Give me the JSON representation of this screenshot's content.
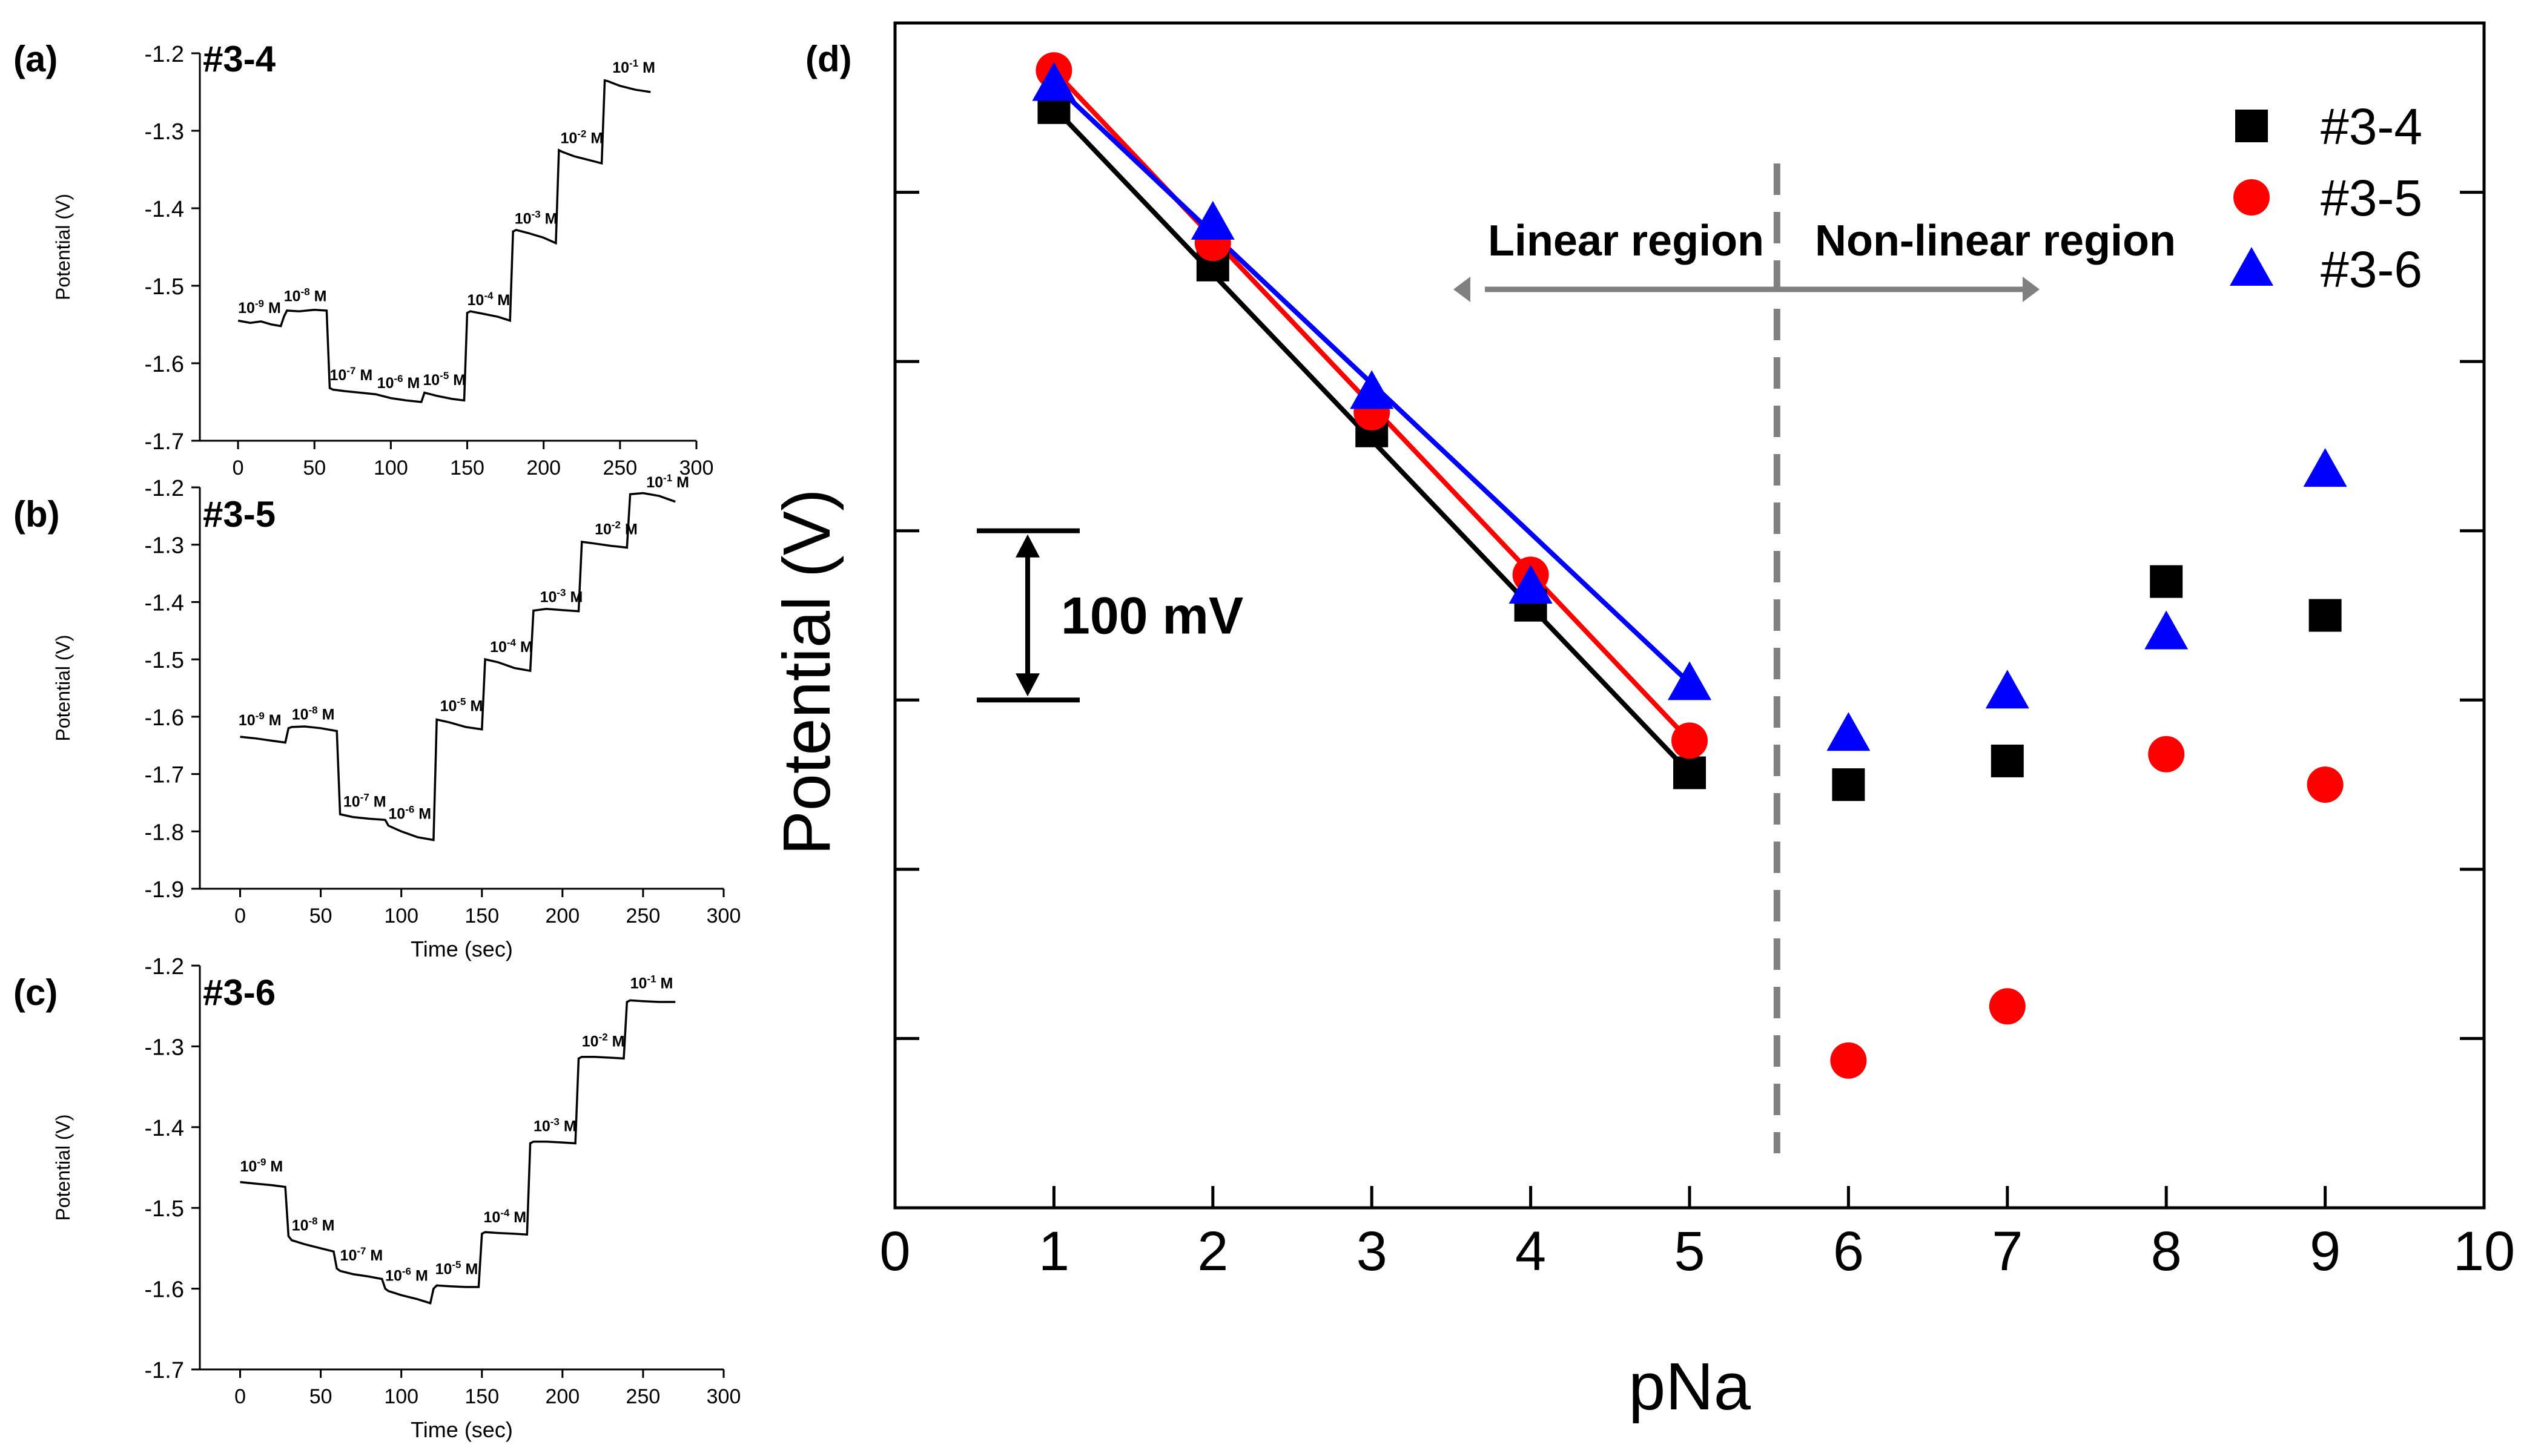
{
  "colors": {
    "black": "#000000",
    "red": "#ff0000",
    "blue": "#0000ff",
    "gray": "#808080"
  },
  "chart_data": [
    {
      "panel": "(a)",
      "title": "#3-4",
      "type": "line",
      "ylabel": "Potential (V)",
      "xlabel": "",
      "xlim": [
        -25,
        300
      ],
      "ylim": [
        -1.7,
        -1.2
      ],
      "xticks": [
        "0",
        "50",
        "100",
        "150",
        "200",
        "250",
        "300"
      ],
      "yticks": [
        "-1.2",
        "-1.3",
        "-1.4",
        "-1.5",
        "-1.6",
        "-1.7"
      ],
      "series": [
        {
          "x": [
            0,
            8,
            15,
            22,
            28,
            30,
            32,
            40,
            50,
            58,
            60,
            62,
            70,
            80,
            90,
            100,
            110,
            120,
            122,
            130,
            140,
            148,
            150,
            152,
            160,
            170,
            178,
            180,
            182,
            190,
            200,
            208,
            210,
            212,
            220,
            230,
            238,
            240,
            242,
            250,
            260,
            270
          ],
          "y": [
            -1.545,
            -1.548,
            -1.546,
            -1.55,
            -1.552,
            -1.54,
            -1.532,
            -1.533,
            -1.531,
            -1.532,
            -1.632,
            -1.634,
            -1.636,
            -1.638,
            -1.64,
            -1.645,
            -1.648,
            -1.65,
            -1.638,
            -1.642,
            -1.646,
            -1.648,
            -1.535,
            -1.533,
            -1.536,
            -1.54,
            -1.545,
            -1.43,
            -1.428,
            -1.432,
            -1.438,
            -1.445,
            -1.325,
            -1.327,
            -1.333,
            -1.338,
            -1.342,
            -1.235,
            -1.236,
            -1.242,
            -1.247,
            -1.25
          ]
        }
      ],
      "annotations": [
        {
          "base": "10",
          "exp": "-9",
          "unit": " M",
          "x": 0,
          "y": -1.535
        },
        {
          "base": "10",
          "exp": "-8",
          "unit": " M",
          "x": 30,
          "y": -1.52
        },
        {
          "base": "10",
          "exp": "-7",
          "unit": " M",
          "x": 60,
          "y": -1.622
        },
        {
          "base": "10",
          "exp": "-6",
          "unit": " M",
          "x": 91,
          "y": -1.632
        },
        {
          "base": "10",
          "exp": "-5",
          "unit": " M",
          "x": 121,
          "y": -1.628
        },
        {
          "base": "10",
          "exp": "-4",
          "unit": " M",
          "x": 150,
          "y": -1.525
        },
        {
          "base": "10",
          "exp": "-3",
          "unit": " M",
          "x": 181,
          "y": -1.42
        },
        {
          "base": "10",
          "exp": "-2",
          "unit": " M",
          "x": 211,
          "y": -1.316
        },
        {
          "base": "10",
          "exp": "-1",
          "unit": " M",
          "x": 245,
          "y": -1.225
        }
      ]
    },
    {
      "panel": "(b)",
      "title": "#3-5",
      "type": "line",
      "ylabel": "Potential (V)",
      "xlabel": "Time (sec)",
      "xlim": [
        -25,
        300
      ],
      "ylim": [
        -1.9,
        -1.2
      ],
      "xticks": [
        "0",
        "50",
        "100",
        "150",
        "200",
        "250",
        "300"
      ],
      "yticks": [
        "-1.2",
        "-1.3",
        "-1.4",
        "-1.5",
        "-1.6",
        "-1.7",
        "-1.8",
        "-1.9"
      ],
      "series": [
        {
          "x": [
            0,
            10,
            20,
            28,
            30,
            32,
            40,
            50,
            60,
            62,
            70,
            80,
            90,
            92,
            100,
            110,
            120,
            122,
            130,
            140,
            150,
            152,
            160,
            170,
            180,
            182,
            190,
            200,
            210,
            212,
            220,
            230,
            240,
            242,
            250,
            260,
            270
          ],
          "y": [
            -1.635,
            -1.638,
            -1.642,
            -1.645,
            -1.62,
            -1.618,
            -1.617,
            -1.62,
            -1.625,
            -1.77,
            -1.775,
            -1.778,
            -1.78,
            -1.79,
            -1.8,
            -1.81,
            -1.815,
            -1.605,
            -1.61,
            -1.618,
            -1.622,
            -1.5,
            -1.505,
            -1.515,
            -1.52,
            -1.415,
            -1.412,
            -1.414,
            -1.416,
            -1.295,
            -1.298,
            -1.302,
            -1.305,
            -1.212,
            -1.21,
            -1.215,
            -1.225
          ]
        }
      ],
      "annotations": [
        {
          "base": "10",
          "exp": "-9",
          "unit": " M",
          "x": -1,
          "y": -1.615
        },
        {
          "base": "10",
          "exp": "-8",
          "unit": " M",
          "x": 32,
          "y": -1.605
        },
        {
          "base": "10",
          "exp": "-7",
          "unit": " M",
          "x": 64,
          "y": -1.757
        },
        {
          "base": "10",
          "exp": "-6",
          "unit": " M",
          "x": 92,
          "y": -1.778
        },
        {
          "base": "10",
          "exp": "-5",
          "unit": " M",
          "x": 124,
          "y": -1.59
        },
        {
          "base": "10",
          "exp": "-4",
          "unit": " M",
          "x": 155,
          "y": -1.487
        },
        {
          "base": "10",
          "exp": "-3",
          "unit": " M",
          "x": 186,
          "y": -1.4
        },
        {
          "base": "10",
          "exp": "-2",
          "unit": " M",
          "x": 220,
          "y": -1.282
        },
        {
          "base": "10",
          "exp": "-1",
          "unit": " M",
          "x": 252,
          "y": -1.2
        }
      ]
    },
    {
      "panel": "(c)",
      "title": "#3-6",
      "type": "line",
      "ylabel": "Potential (V)",
      "xlabel": "Time (sec)",
      "xlim": [
        -25,
        300
      ],
      "ylim": [
        -1.7,
        -1.2
      ],
      "xticks": [
        "0",
        "50",
        "100",
        "150",
        "200",
        "250",
        "300"
      ],
      "yticks": [
        "-1.2",
        "-1.3",
        "-1.4",
        "-1.5",
        "-1.6",
        "-1.7"
      ],
      "series": [
        {
          "x": [
            0,
            10,
            20,
            28,
            30,
            32,
            40,
            50,
            58,
            60,
            62,
            70,
            80,
            88,
            90,
            92,
            100,
            110,
            118,
            120,
            122,
            130,
            140,
            148,
            150,
            152,
            160,
            170,
            178,
            180,
            182,
            190,
            200,
            208,
            210,
            212,
            220,
            230,
            238,
            240,
            242,
            250,
            260,
            270
          ],
          "y": [
            -1.468,
            -1.47,
            -1.472,
            -1.474,
            -1.535,
            -1.54,
            -1.545,
            -1.55,
            -1.554,
            -1.575,
            -1.578,
            -1.582,
            -1.585,
            -1.588,
            -1.6,
            -1.603,
            -1.608,
            -1.613,
            -1.618,
            -1.6,
            -1.596,
            -1.597,
            -1.598,
            -1.598,
            -1.532,
            -1.53,
            -1.531,
            -1.532,
            -1.533,
            -1.42,
            -1.418,
            -1.418,
            -1.419,
            -1.42,
            -1.315,
            -1.313,
            -1.313,
            -1.314,
            -1.315,
            -1.245,
            -1.243,
            -1.244,
            -1.245,
            -1.245
          ]
        }
      ],
      "annotations": [
        {
          "base": "10",
          "exp": "-9",
          "unit": " M",
          "x": 0,
          "y": -1.455
        },
        {
          "base": "10",
          "exp": "-8",
          "unit": " M",
          "x": 32,
          "y": -1.528
        },
        {
          "base": "10",
          "exp": "-7",
          "unit": " M",
          "x": 62,
          "y": -1.565
        },
        {
          "base": "10",
          "exp": "-6",
          "unit": " M",
          "x": 90,
          "y": -1.59
        },
        {
          "base": "10",
          "exp": "-5",
          "unit": " M",
          "x": 121,
          "y": -1.582
        },
        {
          "base": "10",
          "exp": "-4",
          "unit": " M",
          "x": 151,
          "y": -1.518
        },
        {
          "base": "10",
          "exp": "-3",
          "unit": " M",
          "x": 182,
          "y": -1.405
        },
        {
          "base": "10",
          "exp": "-2",
          "unit": " M",
          "x": 212,
          "y": -1.3
        },
        {
          "base": "10",
          "exp": "-1",
          "unit": " M",
          "x": 242,
          "y": -1.228
        }
      ]
    },
    {
      "panel": "(d)",
      "type": "scatter",
      "xlabel": "pNa",
      "ylabel": "Potential (V)",
      "xlim": [
        0,
        10
      ],
      "xticks": [
        "0",
        "1",
        "2",
        "3",
        "4",
        "5",
        "6",
        "7",
        "8",
        "9",
        "10"
      ],
      "y_units": "mV relative",
      "ylim": [
        0,
        700
      ],
      "y_tick_values": [
        100,
        200,
        300,
        400,
        500,
        600
      ],
      "scale_bar": {
        "label": "100 mV",
        "value": 100
      },
      "divider_x": 5.55,
      "regions": {
        "left": "Linear region",
        "right": "Non-linear region"
      },
      "legend_position": "top-right",
      "series": [
        {
          "name": "#3-4",
          "marker": "square",
          "color": "#000000",
          "x": [
            1,
            2,
            3,
            4,
            5,
            6,
            7,
            8,
            9
          ],
          "y": [
            650,
            557,
            459,
            356,
            257,
            250,
            264,
            370,
            350
          ]
        },
        {
          "name": "#3-5",
          "marker": "circle",
          "color": "#ff0000",
          "x": [
            1,
            2,
            3,
            4,
            5,
            6,
            7,
            8,
            9
          ],
          "y": [
            672,
            570,
            470,
            374,
            276,
            87,
            119,
            268,
            250
          ]
        },
        {
          "name": "#3-6",
          "marker": "triangle",
          "color": "#0000ff",
          "x": [
            1,
            2,
            3,
            4,
            5,
            6,
            7,
            8,
            9
          ],
          "y": [
            664,
            582,
            482,
            367,
            310,
            280,
            305,
            340,
            436
          ]
        }
      ],
      "fit_lines": [
        {
          "series": "#3-4",
          "color": "#000000",
          "x": [
            1,
            5
          ],
          "y": [
            650,
            257
          ]
        },
        {
          "series": "#3-5",
          "color": "#ff0000",
          "x": [
            1,
            5
          ],
          "y": [
            672,
            276
          ]
        },
        {
          "series": "#3-6",
          "color": "#0000ff",
          "x": [
            1,
            5
          ],
          "y": [
            664,
            310
          ]
        }
      ]
    }
  ]
}
